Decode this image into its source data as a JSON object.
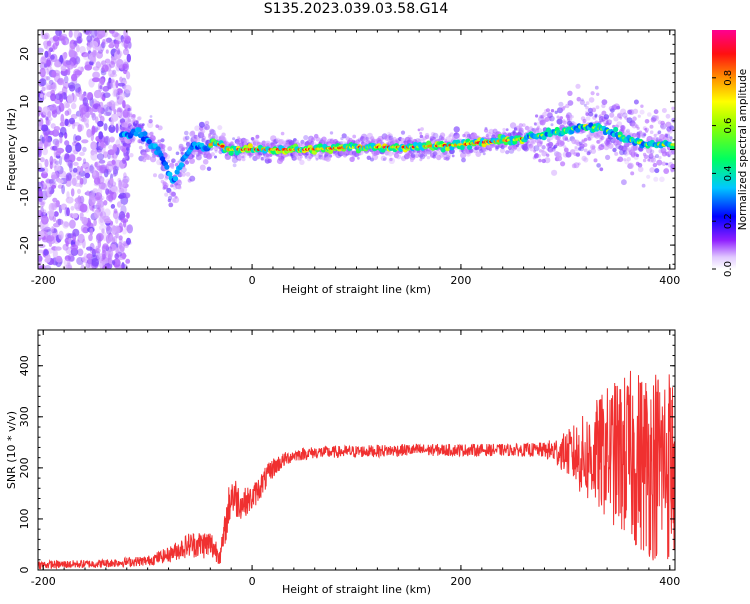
{
  "figure": {
    "title": "S135.2023.039.03.58.G14"
  },
  "chart_data": [
    {
      "type": "heatmap",
      "title": "S135.2023.039.03.58.G14",
      "xlabel": "Height of straight line (km)",
      "ylabel": "Frequency (Hz)",
      "xlim": [
        -205,
        405
      ],
      "ylim": [
        -25,
        25
      ],
      "x_ticks": [
        -200,
        0,
        200,
        400
      ],
      "y_ticks": [
        -20,
        -10,
        0,
        10,
        20
      ],
      "colorbar": {
        "label": "Normalized spectral amplitude",
        "range": [
          0,
          1
        ],
        "ticks": [
          0.0,
          0.2,
          0.4,
          0.6,
          0.8
        ],
        "colormap": [
          "#ffffff",
          "#b060ff",
          "#0000ff",
          "#00c8ff",
          "#00ff60",
          "#e8ff00",
          "#ff8000",
          "#ff0000",
          "#ff0090"
        ]
      },
      "ridge": {
        "x": [
          -120,
          -110,
          -100,
          -95,
          -90,
          -85,
          -80,
          -75,
          -70,
          -65,
          -60,
          -55,
          -50,
          -45,
          -40,
          -35,
          -30,
          -25,
          -20,
          0,
          50,
          100,
          150,
          200,
          220,
          250,
          280,
          300,
          320,
          340,
          360,
          380,
          400
        ],
        "y": [
          3,
          4,
          2,
          1,
          0,
          -2,
          -5,
          -7,
          -4,
          -2,
          0,
          1,
          0.5,
          0,
          1,
          1.5,
          1,
          0,
          0,
          0,
          0,
          0.5,
          0.5,
          1,
          1.5,
          2,
          3,
          4,
          5,
          4,
          2,
          1,
          1
        ]
      },
      "noise_region_x": [
        -205,
        -125
      ],
      "grid": false
    },
    {
      "type": "line",
      "xlabel": "Height of straight line (km)",
      "ylabel": "SNR (10 * v/v)",
      "xlim": [
        -205,
        405
      ],
      "ylim": [
        0,
        470
      ],
      "x_ticks": [
        -200,
        0,
        200,
        400
      ],
      "y_ticks": [
        0,
        100,
        200,
        300,
        400
      ],
      "series_color": "#f03030",
      "envelope": {
        "x": [
          -205,
          -150,
          -100,
          -80,
          -60,
          -40,
          -30,
          -20,
          -10,
          0,
          10,
          20,
          30,
          40,
          60,
          100,
          150,
          200,
          250,
          280,
          300,
          320,
          340,
          360,
          380,
          400
        ],
        "mean": [
          10,
          12,
          18,
          30,
          50,
          50,
          30,
          150,
          130,
          140,
          170,
          200,
          215,
          225,
          230,
          232,
          235,
          235,
          235,
          235,
          230,
          220,
          230,
          220,
          210,
          210
        ],
        "spread": [
          8,
          8,
          10,
          15,
          25,
          30,
          20,
          50,
          30,
          25,
          25,
          20,
          15,
          12,
          12,
          12,
          12,
          12,
          12,
          15,
          40,
          90,
          130,
          170,
          190,
          200
        ]
      },
      "grid": false
    }
  ]
}
